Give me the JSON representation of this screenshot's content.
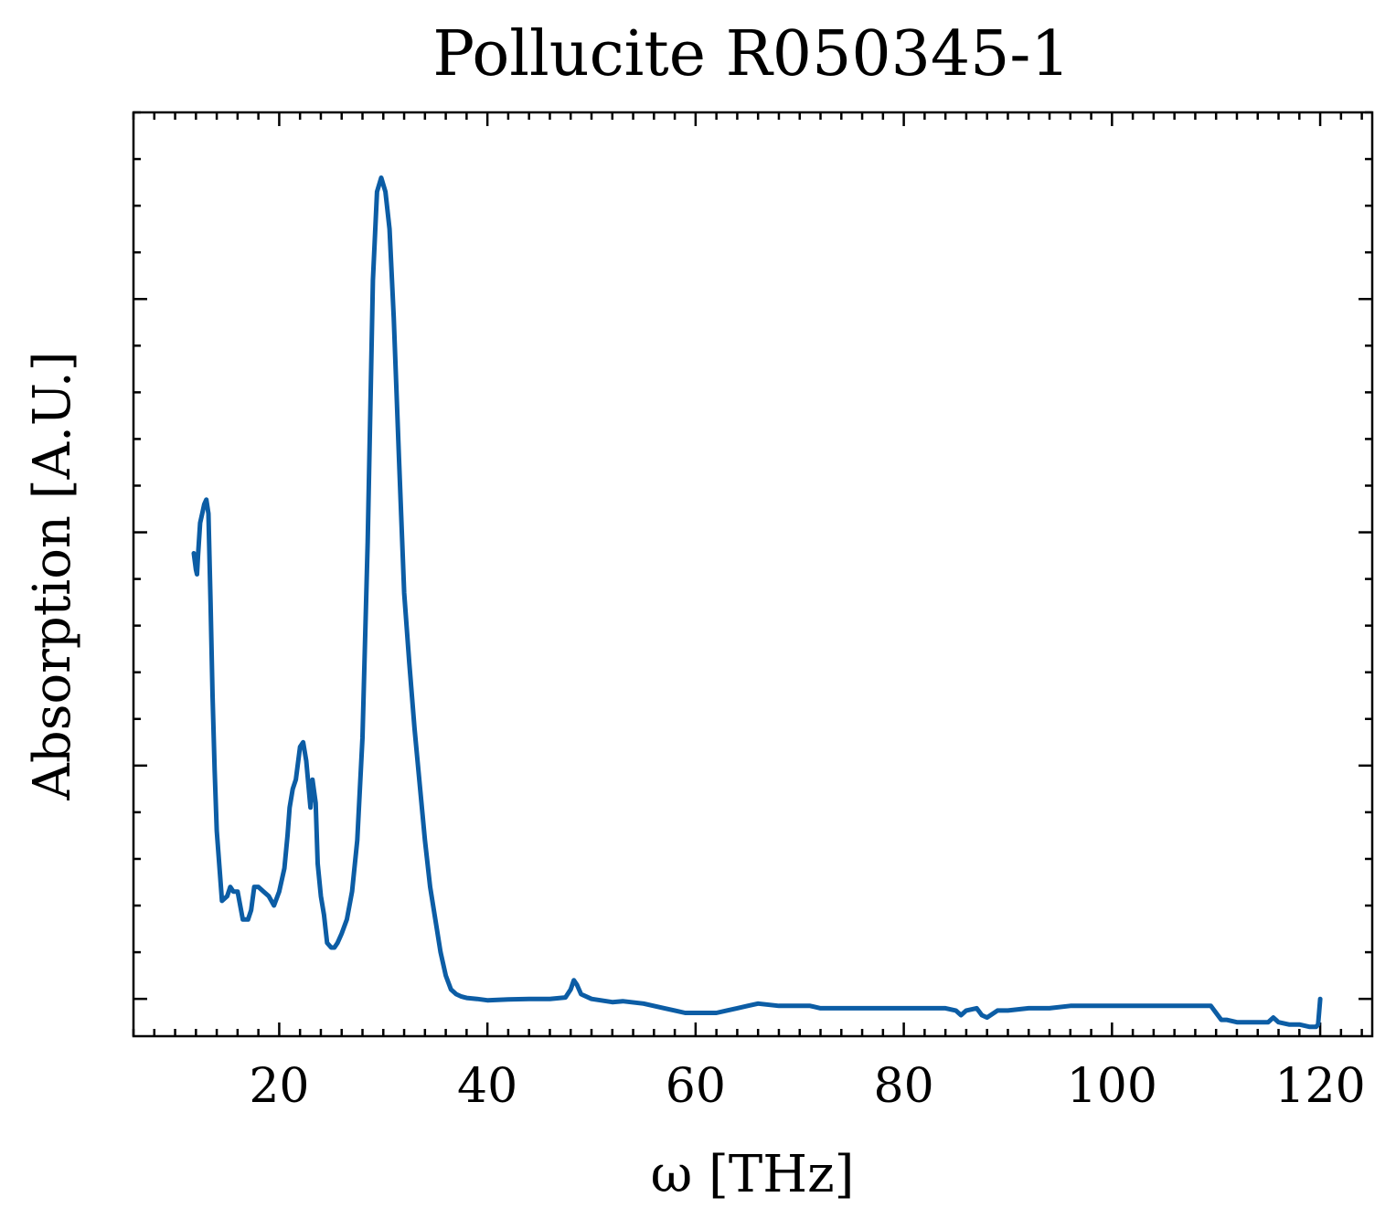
{
  "chart_data": {
    "type": "line",
    "title": "Pollucite R050345-1",
    "xlabel": "ω [THz]",
    "ylabel": "Absorption [A.U.]",
    "xlim": [
      6,
      125
    ],
    "ylim": [
      -0.08,
      1.9
    ],
    "x_major_ticks": [
      20,
      40,
      60,
      80,
      100,
      120
    ],
    "x_tick_labels": [
      "20",
      "40",
      "60",
      "80",
      "100",
      "120"
    ],
    "x_minor_step": 2,
    "y_major_ticks": [
      0,
      0.5,
      1.0,
      1.5
    ],
    "y_minor_step": 0.1,
    "y_tick_labels_shown": false,
    "grid": false,
    "line_color": "#0C5DA5",
    "series": [
      {
        "x": [
          11.8,
          12.0,
          12.1,
          12.2,
          12.4,
          12.6,
          12.8,
          13.0,
          13.2,
          13.4,
          13.6,
          13.8,
          14.0,
          14.5,
          15.0,
          15.3,
          15.6,
          16.0,
          16.5,
          17.0,
          17.3,
          17.6,
          18.0,
          18.5,
          19.0,
          19.5,
          20.0,
          20.5,
          20.8,
          21.0,
          21.3,
          21.6,
          22.0,
          22.3,
          22.6,
          22.8,
          23.0,
          23.2,
          23.5,
          23.7,
          24.0,
          24.3,
          24.6,
          25.0,
          25.3,
          25.6,
          26.0,
          26.5,
          27.0,
          27.5,
          28.0,
          28.5,
          29.0,
          29.4,
          29.8,
          30.2,
          30.6,
          31.0,
          31.5,
          32.0,
          32.5,
          33.0,
          33.5,
          34.0,
          34.5,
          35.0,
          35.5,
          36.0,
          36.5,
          37.0,
          37.5,
          38.0,
          39.0,
          40.0,
          42.0,
          44.0,
          46.0,
          47.5,
          48.0,
          48.3,
          48.6,
          49.0,
          50.0,
          52.0,
          53.0,
          55.0,
          57.0,
          58.0,
          59.0,
          60.0,
          61.0,
          62.0,
          63.0,
          64.0,
          65.0,
          66.0,
          68.0,
          70.0,
          71.0,
          72.0,
          74.0,
          76.0,
          78.0,
          80.0,
          82.0,
          84.0,
          85.0,
          85.5,
          86.0,
          87.0,
          87.5,
          88.0,
          89.0,
          90.0,
          92.0,
          94.0,
          96.0,
          98.0,
          100.0,
          102.0,
          104.0,
          106.0,
          108.0,
          109.5,
          110.0,
          110.5,
          111.0,
          112.0,
          113.0,
          114.0,
          115.0,
          115.5,
          116.0,
          117.0,
          118.0,
          119.0,
          119.6,
          119.8,
          120.0
        ],
        "y": [
          0.955,
          0.92,
          0.91,
          0.95,
          1.02,
          1.04,
          1.06,
          1.07,
          1.04,
          0.85,
          0.65,
          0.49,
          0.36,
          0.21,
          0.22,
          0.24,
          0.23,
          0.23,
          0.17,
          0.17,
          0.19,
          0.24,
          0.24,
          0.23,
          0.22,
          0.2,
          0.23,
          0.28,
          0.35,
          0.41,
          0.45,
          0.47,
          0.54,
          0.55,
          0.51,
          0.46,
          0.41,
          0.47,
          0.42,
          0.29,
          0.22,
          0.18,
          0.12,
          0.11,
          0.11,
          0.12,
          0.14,
          0.17,
          0.23,
          0.34,
          0.56,
          0.98,
          1.54,
          1.73,
          1.76,
          1.73,
          1.65,
          1.46,
          1.16,
          0.87,
          0.72,
          0.58,
          0.46,
          0.34,
          0.24,
          0.17,
          0.1,
          0.05,
          0.02,
          0.01,
          0.005,
          0.002,
          0.0,
          -0.003,
          -0.001,
          0.0,
          0.0,
          0.003,
          0.02,
          0.04,
          0.03,
          0.01,
          0.0,
          -0.007,
          -0.005,
          -0.01,
          -0.02,
          -0.025,
          -0.03,
          -0.03,
          -0.03,
          -0.03,
          -0.025,
          -0.02,
          -0.015,
          -0.01,
          -0.015,
          -0.015,
          -0.015,
          -0.02,
          -0.02,
          -0.02,
          -0.02,
          -0.02,
          -0.02,
          -0.02,
          -0.025,
          -0.035,
          -0.025,
          -0.02,
          -0.035,
          -0.04,
          -0.025,
          -0.025,
          -0.02,
          -0.02,
          -0.015,
          -0.015,
          -0.015,
          -0.015,
          -0.015,
          -0.015,
          -0.015,
          -0.015,
          -0.03,
          -0.045,
          -0.045,
          -0.05,
          -0.05,
          -0.05,
          -0.05,
          -0.04,
          -0.05,
          -0.055,
          -0.055,
          -0.06,
          -0.06,
          -0.055,
          0.0
        ]
      }
    ]
  }
}
